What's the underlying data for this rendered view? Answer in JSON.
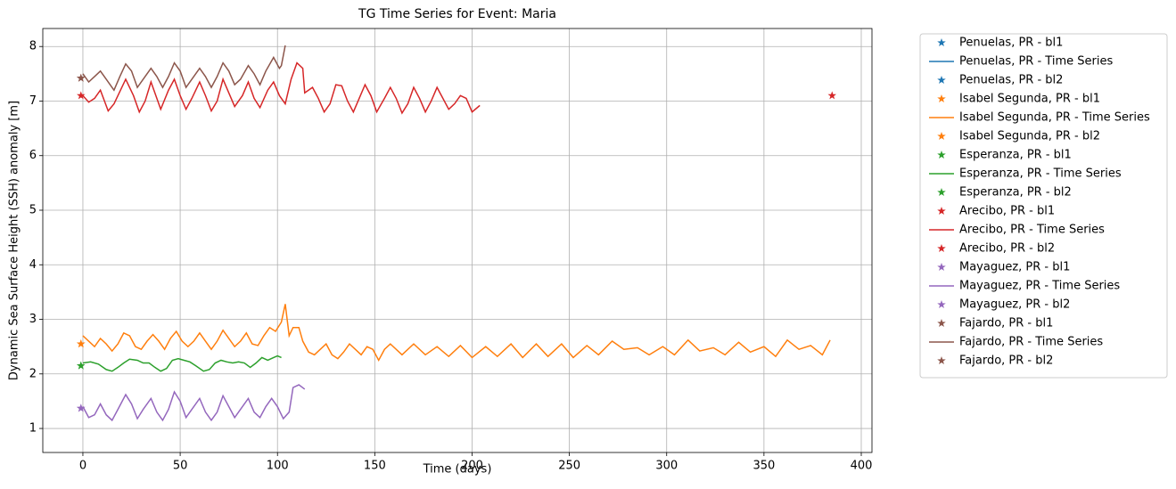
{
  "chart_data": {
    "type": "line",
    "title": "TG Time Series for Event: Maria",
    "x_label": "Time (days)",
    "y_label": "Dynamic Sea Surface Height (SSH) anomaly [m]",
    "xlim": [
      -20.6,
      405.5
    ],
    "xticks": [
      0,
      50,
      100,
      150,
      200,
      250,
      300,
      350,
      400
    ],
    "ylim": [
      0.56,
      8.33
    ],
    "yticks": [
      1,
      2,
      3,
      4,
      5,
      6,
      7,
      8
    ],
    "grid": true,
    "legend": "outside-right",
    "series": [
      {
        "name": "Penuelas, PR - bl1",
        "type": "scatter",
        "color": "#1f77b4",
        "x": [],
        "values": []
      },
      {
        "name": "Penuelas, PR - Time Series",
        "type": "line",
        "color": "#1f77b4",
        "x": [],
        "values": []
      },
      {
        "name": "Penuelas, PR - bl2",
        "type": "scatter",
        "color": "#1f77b4",
        "x": [],
        "values": []
      },
      {
        "name": "Isabel Segunda, PR - bl1",
        "type": "scatter",
        "color": "#ff7f0e",
        "x": [
          -1
        ],
        "values": [
          2.55
        ]
      },
      {
        "name": "Isabel Segunda, PR - Time Series",
        "type": "line",
        "color": "#ff7f0e",
        "x": [
          0,
          3,
          6,
          9,
          12,
          15,
          18,
          21,
          24,
          27,
          30,
          33,
          36,
          39,
          42,
          45,
          48,
          51,
          54,
          57,
          60,
          63,
          66,
          69,
          72,
          75,
          78,
          81,
          84,
          87,
          90,
          93,
          96,
          99,
          102,
          104,
          106,
          108,
          111,
          113,
          116,
          119,
          122,
          125,
          128,
          131,
          134,
          137,
          140,
          143,
          146,
          149,
          152,
          155,
          158,
          164,
          170,
          176,
          182,
          188,
          194,
          200,
          207,
          213,
          220,
          226,
          233,
          239,
          246,
          252,
          259,
          265,
          272,
          278,
          285,
          291,
          298,
          304,
          311,
          317,
          324,
          330,
          337,
          343,
          350,
          356,
          362,
          368,
          374,
          380,
          384
        ],
        "values": [
          2.7,
          2.6,
          2.5,
          2.65,
          2.55,
          2.42,
          2.55,
          2.75,
          2.7,
          2.5,
          2.45,
          2.6,
          2.72,
          2.6,
          2.45,
          2.65,
          2.78,
          2.6,
          2.5,
          2.6,
          2.75,
          2.6,
          2.45,
          2.6,
          2.8,
          2.65,
          2.5,
          2.6,
          2.75,
          2.55,
          2.52,
          2.7,
          2.85,
          2.78,
          2.95,
          3.28,
          2.7,
          2.85,
          2.85,
          2.6,
          2.4,
          2.35,
          2.45,
          2.55,
          2.35,
          2.28,
          2.4,
          2.55,
          2.45,
          2.35,
          2.5,
          2.45,
          2.25,
          2.45,
          2.55,
          2.35,
          2.55,
          2.35,
          2.5,
          2.32,
          2.52,
          2.3,
          2.5,
          2.32,
          2.55,
          2.3,
          2.55,
          2.32,
          2.55,
          2.3,
          2.52,
          2.35,
          2.6,
          2.45,
          2.48,
          2.35,
          2.5,
          2.35,
          2.62,
          2.42,
          2.48,
          2.35,
          2.58,
          2.4,
          2.5,
          2.32,
          2.62,
          2.45,
          2.52,
          2.35,
          2.62
        ]
      },
      {
        "name": "Isabel Segunda, PR - bl2",
        "type": "scatter",
        "color": "#ff7f0e",
        "x": [
          -1
        ],
        "values": [
          2.55
        ]
      },
      {
        "name": "Esperanza, PR - bl1",
        "type": "scatter",
        "color": "#2ca02c",
        "x": [
          -1
        ],
        "values": [
          2.15
        ]
      },
      {
        "name": "Esperanza, PR - Time Series",
        "type": "line",
        "color": "#2ca02c",
        "x": [
          0,
          4,
          8,
          12,
          15,
          18,
          21,
          24,
          28,
          31,
          34,
          37,
          40,
          43,
          46,
          49,
          52,
          55,
          58,
          62,
          65,
          68,
          71,
          74,
          77,
          80,
          83,
          86,
          89,
          92,
          95,
          98,
          100,
          102
        ],
        "values": [
          2.2,
          2.22,
          2.18,
          2.08,
          2.05,
          2.12,
          2.2,
          2.27,
          2.25,
          2.2,
          2.2,
          2.12,
          2.05,
          2.1,
          2.25,
          2.28,
          2.25,
          2.22,
          2.15,
          2.05,
          2.08,
          2.2,
          2.25,
          2.22,
          2.2,
          2.22,
          2.2,
          2.12,
          2.2,
          2.3,
          2.25,
          2.3,
          2.33,
          2.3
        ]
      },
      {
        "name": "Esperanza, PR - bl2",
        "type": "scatter",
        "color": "#2ca02c",
        "x": [
          -1
        ],
        "values": [
          2.15
        ]
      },
      {
        "name": "Arecibo, PR - bl1",
        "type": "scatter",
        "color": "#d62728",
        "x": [
          -1
        ],
        "values": [
          7.1
        ]
      },
      {
        "name": "Arecibo, PR - Time Series",
        "type": "line",
        "color": "#d62728",
        "x": [
          0,
          3,
          6,
          9,
          13,
          16,
          22,
          26,
          29,
          32,
          35,
          40,
          44,
          47,
          50,
          53,
          56,
          60,
          63,
          66,
          69,
          72,
          75,
          78,
          82,
          85,
          88,
          91,
          95,
          98,
          101,
          104,
          107,
          110,
          113,
          114,
          118,
          121,
          124,
          127,
          130,
          133,
          136,
          139,
          142,
          145,
          148,
          151,
          155,
          158,
          161,
          164,
          167,
          170,
          173,
          176,
          179,
          182,
          185,
          188,
          191,
          194,
          197,
          200,
          204
        ],
        "values": [
          7.1,
          6.98,
          7.05,
          7.2,
          6.82,
          6.95,
          7.4,
          7.1,
          6.8,
          7.0,
          7.35,
          6.85,
          7.2,
          7.4,
          7.1,
          6.85,
          7.05,
          7.35,
          7.1,
          6.82,
          7.0,
          7.4,
          7.15,
          6.9,
          7.1,
          7.35,
          7.05,
          6.88,
          7.2,
          7.35,
          7.1,
          6.95,
          7.4,
          7.7,
          7.6,
          7.15,
          7.25,
          7.05,
          6.8,
          6.95,
          7.3,
          7.28,
          7.0,
          6.8,
          7.05,
          7.3,
          7.1,
          6.8,
          7.05,
          7.25,
          7.05,
          6.78,
          6.95,
          7.25,
          7.05,
          6.8,
          7.0,
          7.25,
          7.05,
          6.85,
          6.95,
          7.1,
          7.05,
          6.8,
          6.92
        ]
      },
      {
        "name": "Arecibo, PR - bl2",
        "type": "scatter",
        "color": "#d62728",
        "x": [
          385
        ],
        "values": [
          7.1
        ]
      },
      {
        "name": "Mayaguez, PR - bl1",
        "type": "scatter",
        "color": "#9467bd",
        "x": [
          -1
        ],
        "values": [
          1.37
        ]
      },
      {
        "name": "Mayaguez, PR - Time Series",
        "type": "line",
        "color": "#9467bd",
        "x": [
          0,
          3,
          6,
          9,
          12,
          15,
          18,
          22,
          25,
          28,
          31,
          35,
          38,
          41,
          44,
          47,
          50,
          53,
          56,
          60,
          63,
          66,
          69,
          72,
          75,
          78,
          81,
          85,
          88,
          91,
          94,
          97,
          100,
          103,
          106,
          108,
          111,
          114
        ],
        "values": [
          1.4,
          1.2,
          1.25,
          1.45,
          1.25,
          1.15,
          1.35,
          1.62,
          1.45,
          1.18,
          1.35,
          1.55,
          1.3,
          1.15,
          1.35,
          1.67,
          1.5,
          1.2,
          1.35,
          1.55,
          1.3,
          1.15,
          1.3,
          1.6,
          1.4,
          1.2,
          1.35,
          1.55,
          1.3,
          1.2,
          1.4,
          1.55,
          1.4,
          1.18,
          1.3,
          1.75,
          1.8,
          1.72
        ]
      },
      {
        "name": "Mayaguez, PR - bl2",
        "type": "scatter",
        "color": "#9467bd",
        "x": [
          -1
        ],
        "values": [
          1.37
        ]
      },
      {
        "name": "Fajardo, PR - bl1",
        "type": "scatter",
        "color": "#8c564b",
        "x": [
          -1
        ],
        "values": [
          7.42
        ]
      },
      {
        "name": "Fajardo, PR - Time Series",
        "type": "line",
        "color": "#8c564b",
        "x": [
          0,
          3,
          6,
          9,
          12,
          16,
          19,
          22,
          25,
          28,
          31,
          35,
          38,
          41,
          44,
          47,
          50,
          53,
          56,
          60,
          63,
          66,
          69,
          72,
          75,
          78,
          81,
          85,
          88,
          91,
          94,
          98,
          101,
          102,
          104
        ],
        "values": [
          7.5,
          7.35,
          7.45,
          7.55,
          7.4,
          7.2,
          7.45,
          7.68,
          7.55,
          7.25,
          7.4,
          7.6,
          7.45,
          7.25,
          7.45,
          7.7,
          7.55,
          7.25,
          7.4,
          7.6,
          7.45,
          7.25,
          7.45,
          7.7,
          7.55,
          7.3,
          7.4,
          7.65,
          7.5,
          7.3,
          7.55,
          7.8,
          7.6,
          7.65,
          8.02
        ]
      },
      {
        "name": "Fajardo, PR - bl2",
        "type": "scatter",
        "color": "#8c564b",
        "x": [
          -1
        ],
        "values": [
          7.42
        ]
      }
    ]
  }
}
